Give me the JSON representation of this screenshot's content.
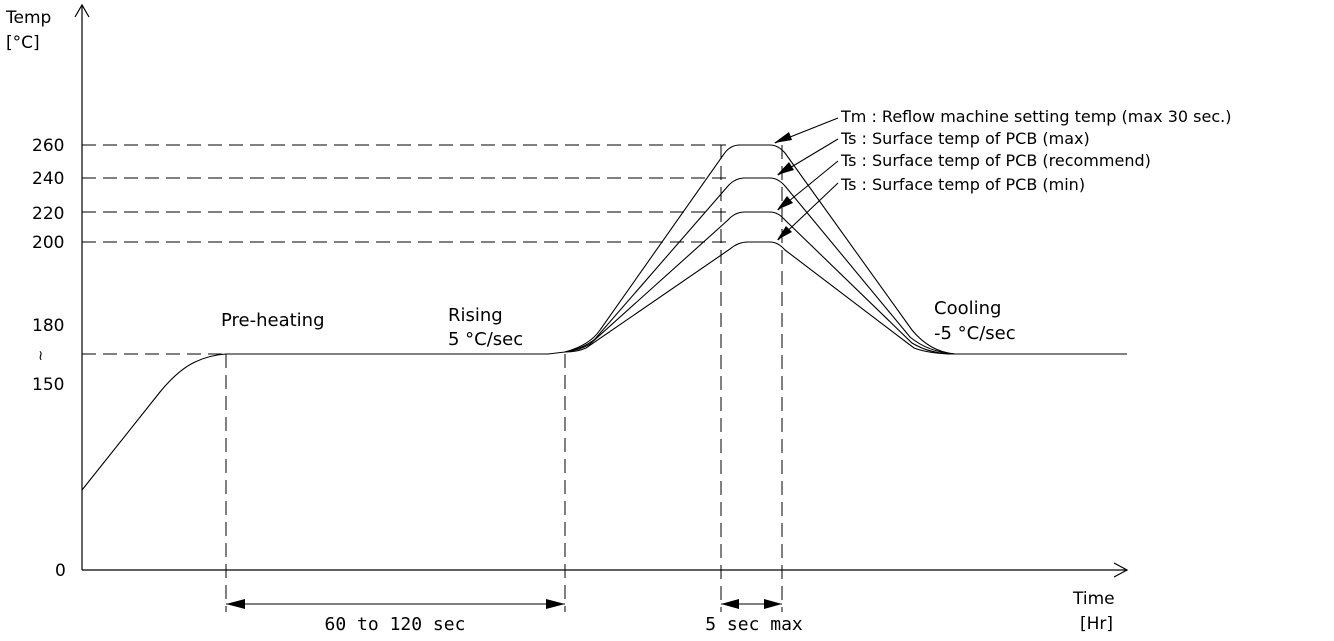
{
  "chart_data": {
    "type": "line",
    "title": "",
    "ylabel": [
      "Temp",
      "[°C]"
    ],
    "xlabel": [
      "Time",
      "[Hr]"
    ],
    "yticks": [
      {
        "label": "260",
        "value": 260
      },
      {
        "label": "240",
        "value": 240
      },
      {
        "label": "220",
        "value": 220
      },
      {
        "label": "200",
        "value": 200
      },
      {
        "label": "180",
        "value": 180
      },
      {
        "label": "≀",
        "value": 165
      },
      {
        "label": "150",
        "value": 150
      },
      {
        "label": "0",
        "value": 0
      }
    ],
    "series": [
      {
        "legend": "Tm : Reflow machine setting temp (max 30 sec.)",
        "peak": 260
      },
      {
        "legend": "Ts : Surface temp of PCB (max)",
        "peak": 240
      },
      {
        "legend": "Ts : Surface temp of PCB (recommend)",
        "peak": 220
      },
      {
        "legend": "Ts : Surface temp of PCB (min)",
        "peak": 200
      }
    ],
    "phases": {
      "preheat": "Pre-heating",
      "rising": [
        "Rising",
        "5 °C/sec"
      ],
      "cooling": [
        "Cooling",
        "-5 °C/sec"
      ]
    },
    "durations": {
      "preheat": "60 to 120 sec",
      "peak": "5 sec max"
    }
  }
}
